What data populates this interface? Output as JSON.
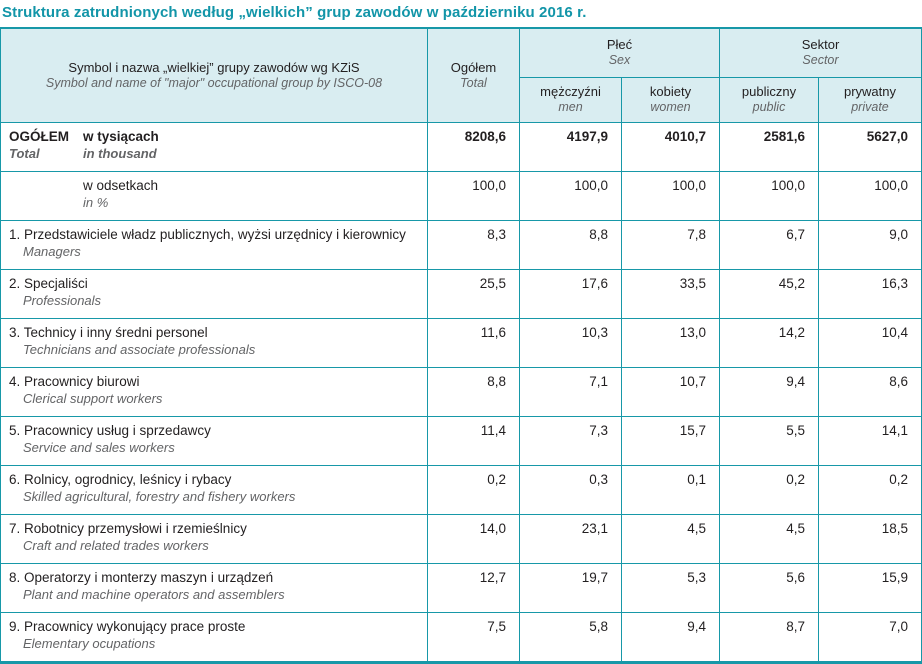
{
  "title": "Struktura zatrudnionych według „wielkich” grup zawodów w październiku 2016 r.",
  "colors": {
    "accent": "#1798a8",
    "title": "#1295a8",
    "header_bg": "#d9edf1",
    "text": "#221f20",
    "muted": "#636466"
  },
  "table": {
    "header": {
      "symbol_pl": "Symbol i nazwa „wielkiej” grupy zawodów wg KZiS",
      "symbol_en": "Symbol and name of \"major\" occupational group by ISCO-08",
      "total_pl": "Ogółem",
      "total_en": "Total",
      "sex_pl": "Płeć",
      "sex_en": "Sex",
      "sector_pl": "Sektor",
      "sector_en": "Sector",
      "men_pl": "mężczyźni",
      "men_en": "men",
      "women_pl": "kobiety",
      "women_en": "women",
      "public_pl": "publiczny",
      "public_en": "public",
      "private_pl": "prywatny",
      "private_en": "private"
    },
    "total_rows": [
      {
        "head_pl": "OGÓŁEM",
        "head_en": "Total",
        "unit_pl": "w tysiącach",
        "unit_en": "in thousand",
        "values": [
          "8208,6",
          "4197,9",
          "4010,7",
          "2581,6",
          "5627,0"
        ]
      },
      {
        "head_pl": "",
        "head_en": "",
        "unit_pl": "w odsetkach",
        "unit_en": "in %",
        "values": [
          "100,0",
          "100,0",
          "100,0",
          "100,0",
          "100,0"
        ]
      }
    ],
    "rows": [
      {
        "pl": "1. Przedstawiciele władz publicznych, wyżsi urzędnicy i kierownicy",
        "en": "Managers",
        "values": [
          "8,3",
          "8,8",
          "7,8",
          "6,7",
          "9,0"
        ]
      },
      {
        "pl": "2. Specjaliści",
        "en": "Professionals",
        "values": [
          "25,5",
          "17,6",
          "33,5",
          "45,2",
          "16,3"
        ]
      },
      {
        "pl": "3. Technicy i inny średni personel",
        "en": "Technicians and associate professionals",
        "values": [
          "11,6",
          "10,3",
          "13,0",
          "14,2",
          "10,4"
        ]
      },
      {
        "pl": "4. Pracownicy biurowi",
        "en": "Clerical support workers",
        "values": [
          "8,8",
          "7,1",
          "10,7",
          "9,4",
          "8,6"
        ]
      },
      {
        "pl": "5. Pracownicy usług i sprzedawcy",
        "en": "Service and sales workers",
        "values": [
          "11,4",
          "7,3",
          "15,7",
          "5,5",
          "14,1"
        ]
      },
      {
        "pl": "6. Rolnicy, ogrodnicy, leśnicy i rybacy",
        "en": "Skilled agricultural, forestry and fishery workers",
        "values": [
          "0,2",
          "0,3",
          "0,1",
          "0,2",
          "0,2"
        ]
      },
      {
        "pl": "7. Robotnicy przemysłowi i rzemieślnicy",
        "en": "Craft and related trades workers",
        "values": [
          "14,0",
          "23,1",
          "4,5",
          "4,5",
          "18,5"
        ]
      },
      {
        "pl": "8. Operatorzy i monterzy maszyn i urządzeń",
        "en": "Plant and machine operators and assemblers",
        "values": [
          "12,7",
          "19,7",
          "5,3",
          "5,6",
          "15,9"
        ]
      },
      {
        "pl": "9. Pracownicy wykonujący prace proste",
        "en": "Elementary ocupations",
        "values": [
          "7,5",
          "5,8",
          "9,4",
          "8,7",
          "7,0"
        ]
      }
    ]
  }
}
